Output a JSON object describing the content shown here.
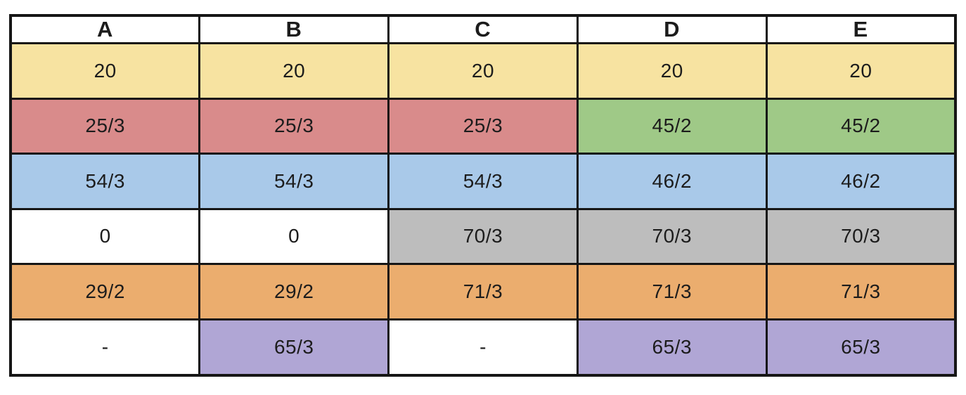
{
  "palette": {
    "yellow": "#f7e3a1",
    "red": "#d98b8b",
    "green": "#9fc987",
    "blue": "#a9c9e9",
    "gray": "#bdbdbd",
    "orange": "#ebad6e",
    "purple": "#b0a6d5",
    "white": "#ffffff",
    "border": "#161616",
    "text": "#1c1c1c"
  },
  "chart_data": {
    "type": "table",
    "columns": [
      "A",
      "B",
      "C",
      "D",
      "E"
    ],
    "rows": [
      [
        "20",
        "20",
        "20",
        "20",
        "20"
      ],
      [
        "25/3",
        "25/3",
        "25/3",
        "45/2",
        "45/2"
      ],
      [
        "54/3",
        "54/3",
        "54/3",
        "46/2",
        "46/2"
      ],
      [
        "0",
        "0",
        "70/3",
        "70/3",
        "70/3"
      ],
      [
        "29/2",
        "29/2",
        "71/3",
        "71/3",
        "71/3"
      ],
      [
        "-",
        "65/3",
        "-",
        "65/3",
        "65/3"
      ]
    ],
    "cell_colors": [
      [
        "yellow",
        "yellow",
        "yellow",
        "yellow",
        "yellow"
      ],
      [
        "red",
        "red",
        "red",
        "green",
        "green"
      ],
      [
        "blue",
        "blue",
        "blue",
        "blue",
        "blue"
      ],
      [
        "white",
        "white",
        "gray",
        "gray",
        "gray"
      ],
      [
        "orange",
        "orange",
        "orange",
        "orange",
        "orange"
      ],
      [
        "white",
        "purple",
        "white",
        "purple",
        "purple"
      ]
    ]
  }
}
